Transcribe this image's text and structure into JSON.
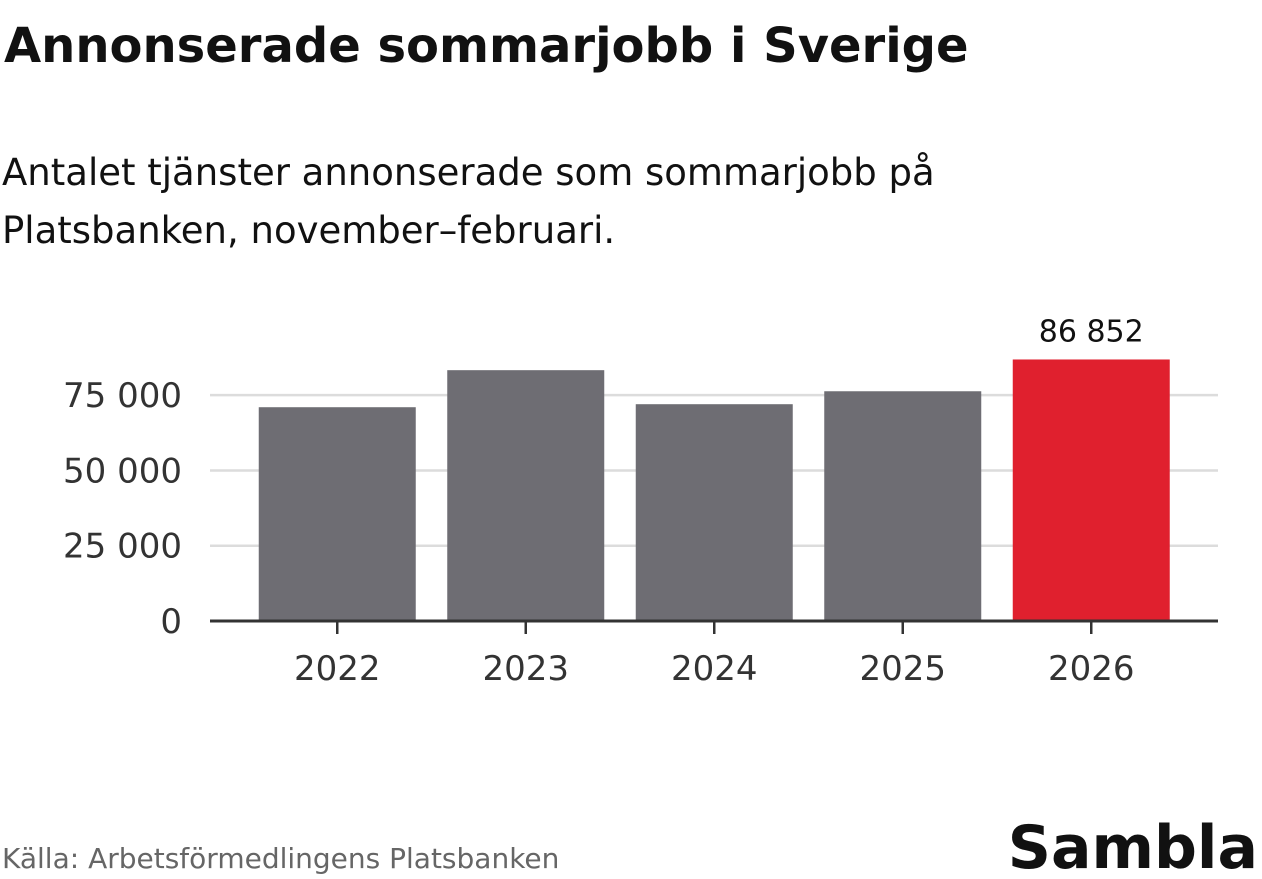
{
  "chart_data": {
    "type": "bar",
    "title": "Annonserade sommarjobb  i Sverige",
    "subtitle_lines": [
      "Antalet tjänster annonserade som sommarjobb på",
      "Platsbanken, november–februari."
    ],
    "categories": [
      "2022",
      "2023",
      "2024",
      "2025",
      "2026"
    ],
    "values": [
      71000,
      83300,
      72000,
      76300,
      86852
    ],
    "value_labels": [
      null,
      null,
      null,
      null,
      "86 852"
    ],
    "colors": [
      "#6e6d73",
      "#6e6d73",
      "#6e6d73",
      "#6e6d73",
      "#e0202e"
    ],
    "ylim": [
      0,
      90000
    ],
    "yticks": [
      0,
      {
        "value": 25000,
        "label": "25 000"
      },
      {
        "value": 50000,
        "label": "50 000"
      },
      {
        "value": 75000,
        "label": "75 000"
      }
    ],
    "grid": true,
    "source": "Källa: Arbetsförmedlingens Platsbanken",
    "logo": "Sambla"
  }
}
